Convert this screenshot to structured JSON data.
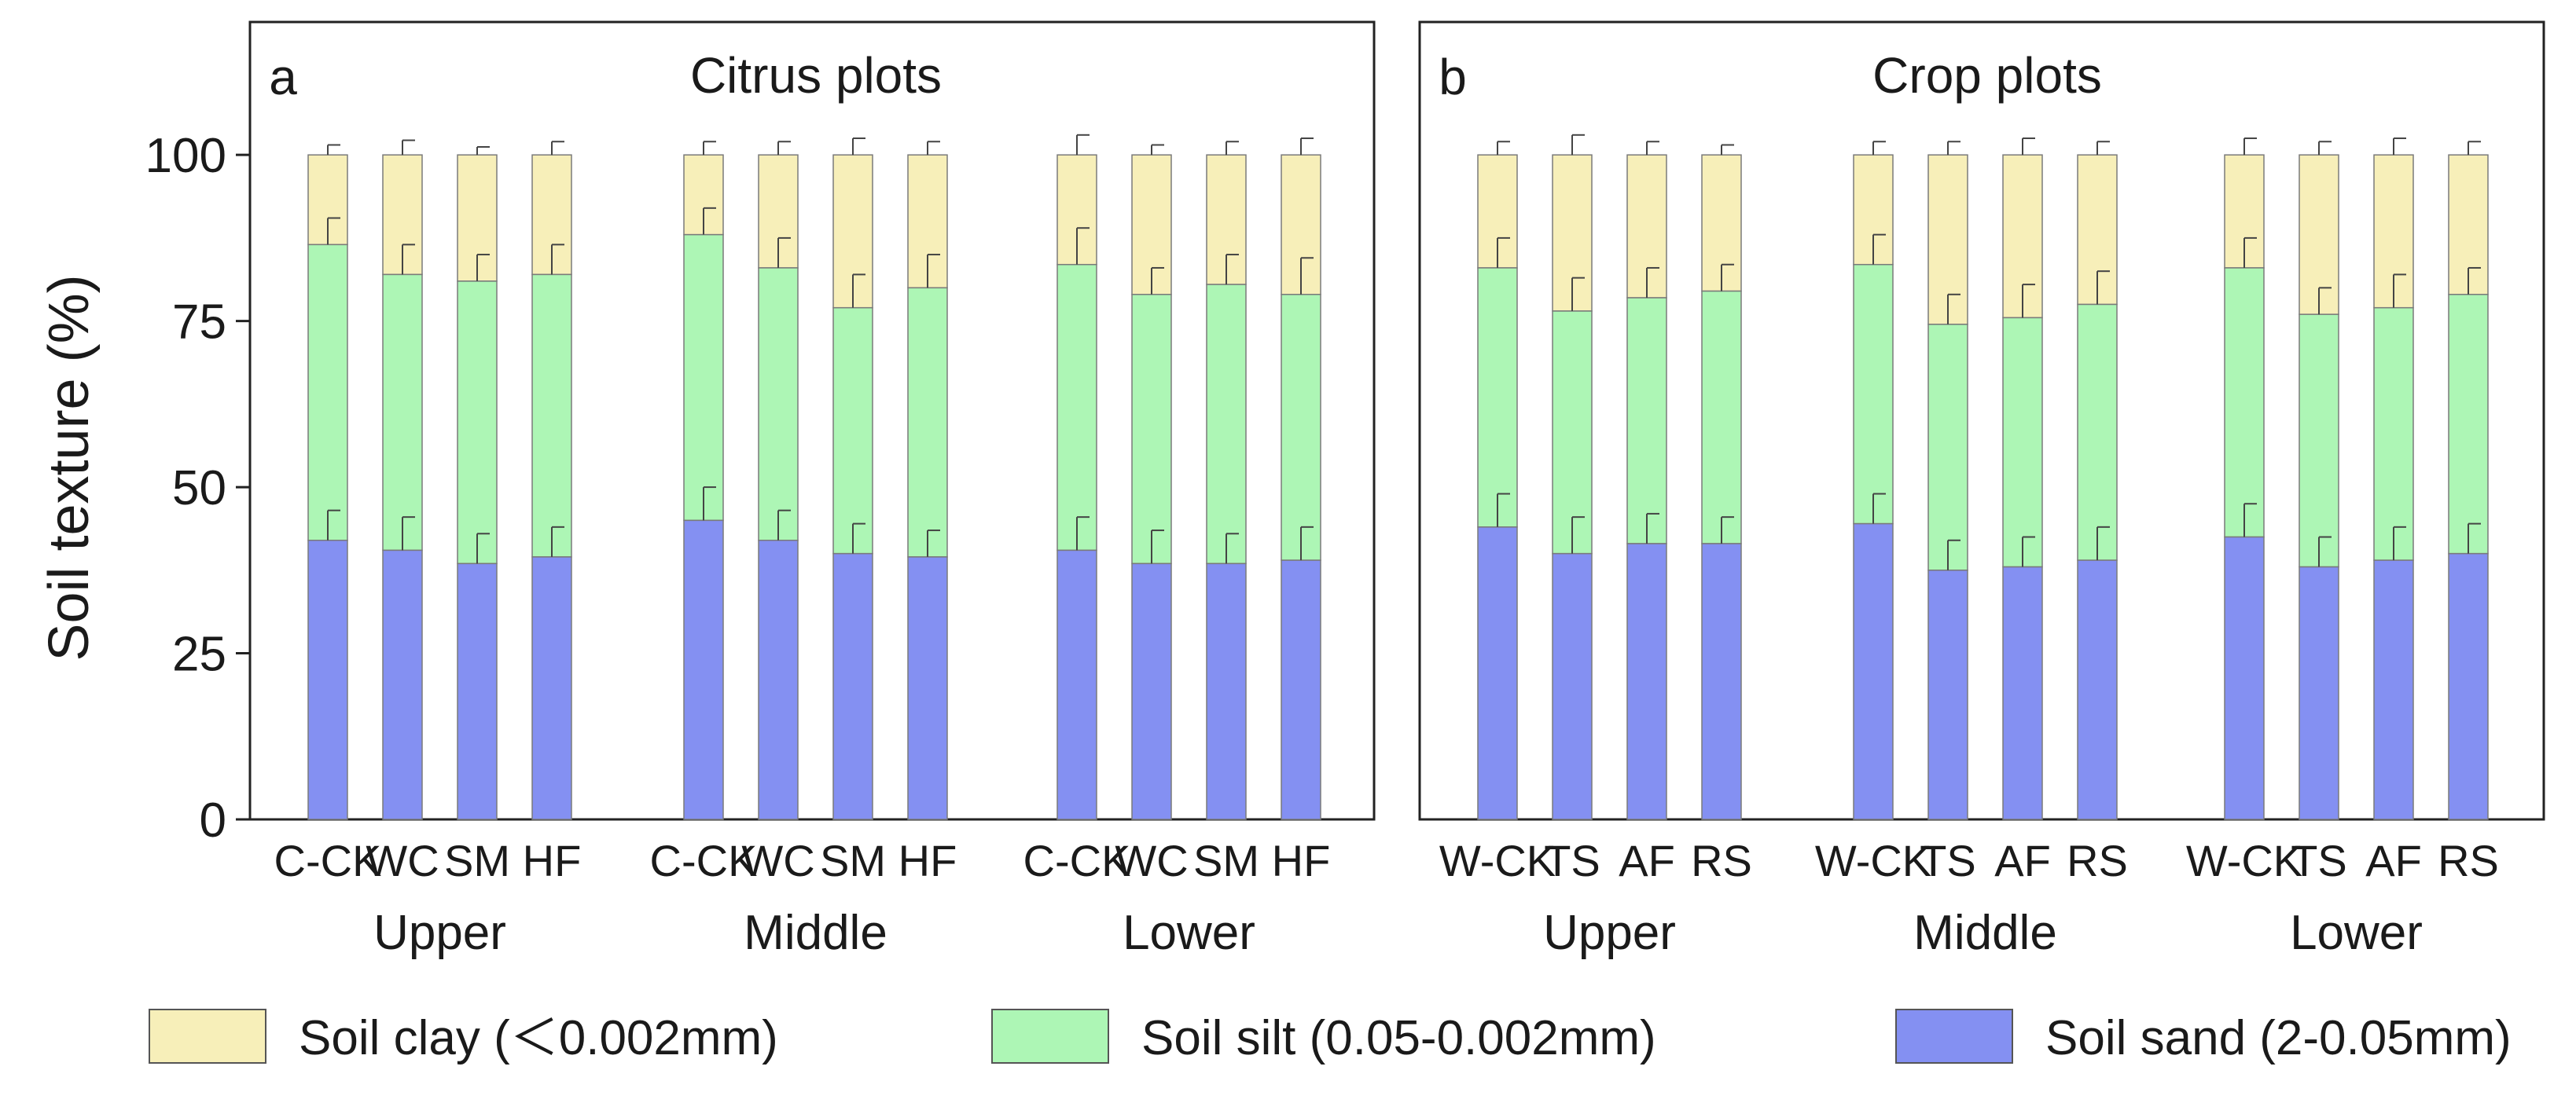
{
  "chart_data": {
    "type": "bar",
    "stacked": true,
    "y_axis_label": "Soil  texture (%)",
    "y_ticks": [
      "0",
      "25",
      "50",
      "75",
      "100"
    ],
    "ylim": [
      0,
      120
    ],
    "colors": {
      "clay": "#f7efb9",
      "silt": "#adf6b5",
      "sand": "#8490f2",
      "outline": "#7a7a7a",
      "axis": "#222222"
    },
    "legend": [
      {
        "key": "clay",
        "label": "Soil clay (＜0.002mm)"
      },
      {
        "key": "silt",
        "label": "Soil silt (0.05-0.002mm)"
      },
      {
        "key": "sand",
        "label": "Soil sand (2-0.05mm)"
      }
    ],
    "panels": [
      {
        "letter": "a",
        "title": "Citrus  plots",
        "groups": [
          {
            "name": "Upper",
            "categories": [
              "C-CK",
              "WC",
              "SM",
              "HF"
            ],
            "sand": [
              42,
              40.5,
              38.5,
              39.5
            ],
            "sand_err": [
              4.5,
              5,
              4.5,
              4.5
            ],
            "sand_silt": [
              86.5,
              82,
              81,
              82
            ],
            "sand_silt_err": [
              4,
              4.5,
              4,
              4.5
            ],
            "total": [
              100,
              100,
              100,
              100
            ],
            "total_err": [
              1.5,
              2.2,
              1.2,
              2
            ]
          },
          {
            "name": "Middle",
            "categories": [
              "C-CK",
              "WC",
              "SM",
              "HF"
            ],
            "sand": [
              45,
              42,
              40,
              39.5
            ],
            "sand_err": [
              5,
              4.5,
              4.5,
              4
            ],
            "sand_silt": [
              88,
              83,
              77,
              80
            ],
            "sand_silt_err": [
              4,
              4.5,
              5,
              5
            ],
            "total": [
              100,
              100,
              100,
              100
            ],
            "total_err": [
              2,
              2,
              2.5,
              2
            ]
          },
          {
            "name": "Lower",
            "categories": [
              "C-CK",
              "WC",
              "SM",
              "HF"
            ],
            "sand": [
              40.5,
              38.5,
              38.5,
              39
            ],
            "sand_err": [
              5,
              5,
              4.5,
              5
            ],
            "sand_silt": [
              83.5,
              79,
              80.5,
              79
            ],
            "sand_silt_err": [
              5.5,
              4,
              4.5,
              5.5
            ],
            "total": [
              100,
              100,
              100,
              100
            ],
            "total_err": [
              3,
              1.5,
              2,
              2.5
            ]
          }
        ]
      },
      {
        "letter": "b",
        "title": "Crop  plots",
        "groups": [
          {
            "name": "Upper",
            "categories": [
              "W-CK",
              "TS",
              "AF",
              "RS"
            ],
            "sand": [
              44,
              40,
              41.5,
              41.5
            ],
            "sand_err": [
              5,
              5.5,
              4.5,
              4
            ],
            "sand_silt": [
              83,
              76.5,
              78.5,
              79.5
            ],
            "sand_silt_err": [
              4.5,
              5,
              4.5,
              4
            ],
            "total": [
              100,
              100,
              100,
              100
            ],
            "total_err": [
              2,
              3,
              2,
              1.5
            ]
          },
          {
            "name": "Middle",
            "categories": [
              "W-CK",
              "TS",
              "AF",
              "RS"
            ],
            "sand": [
              44.5,
              37.5,
              38,
              39
            ],
            "sand_err": [
              4.5,
              4.5,
              4.5,
              5
            ],
            "sand_silt": [
              83.5,
              74.5,
              75.5,
              77.5
            ],
            "sand_silt_err": [
              4.5,
              4.5,
              5,
              5
            ],
            "total": [
              100,
              100,
              100,
              100
            ],
            "total_err": [
              2,
              2,
              2.5,
              2
            ]
          },
          {
            "name": "Lower",
            "categories": [
              "W-CK",
              "TS",
              "AF",
              "RS"
            ],
            "sand": [
              42.5,
              38,
              39,
              40
            ],
            "sand_err": [
              5,
              4.5,
              5,
              4.5
            ],
            "sand_silt": [
              83,
              76,
              77,
              79
            ],
            "sand_silt_err": [
              4.5,
              4,
              5,
              4
            ],
            "total": [
              100,
              100,
              100,
              100
            ],
            "total_err": [
              2.5,
              2,
              2.5,
              2
            ]
          }
        ]
      }
    ]
  }
}
